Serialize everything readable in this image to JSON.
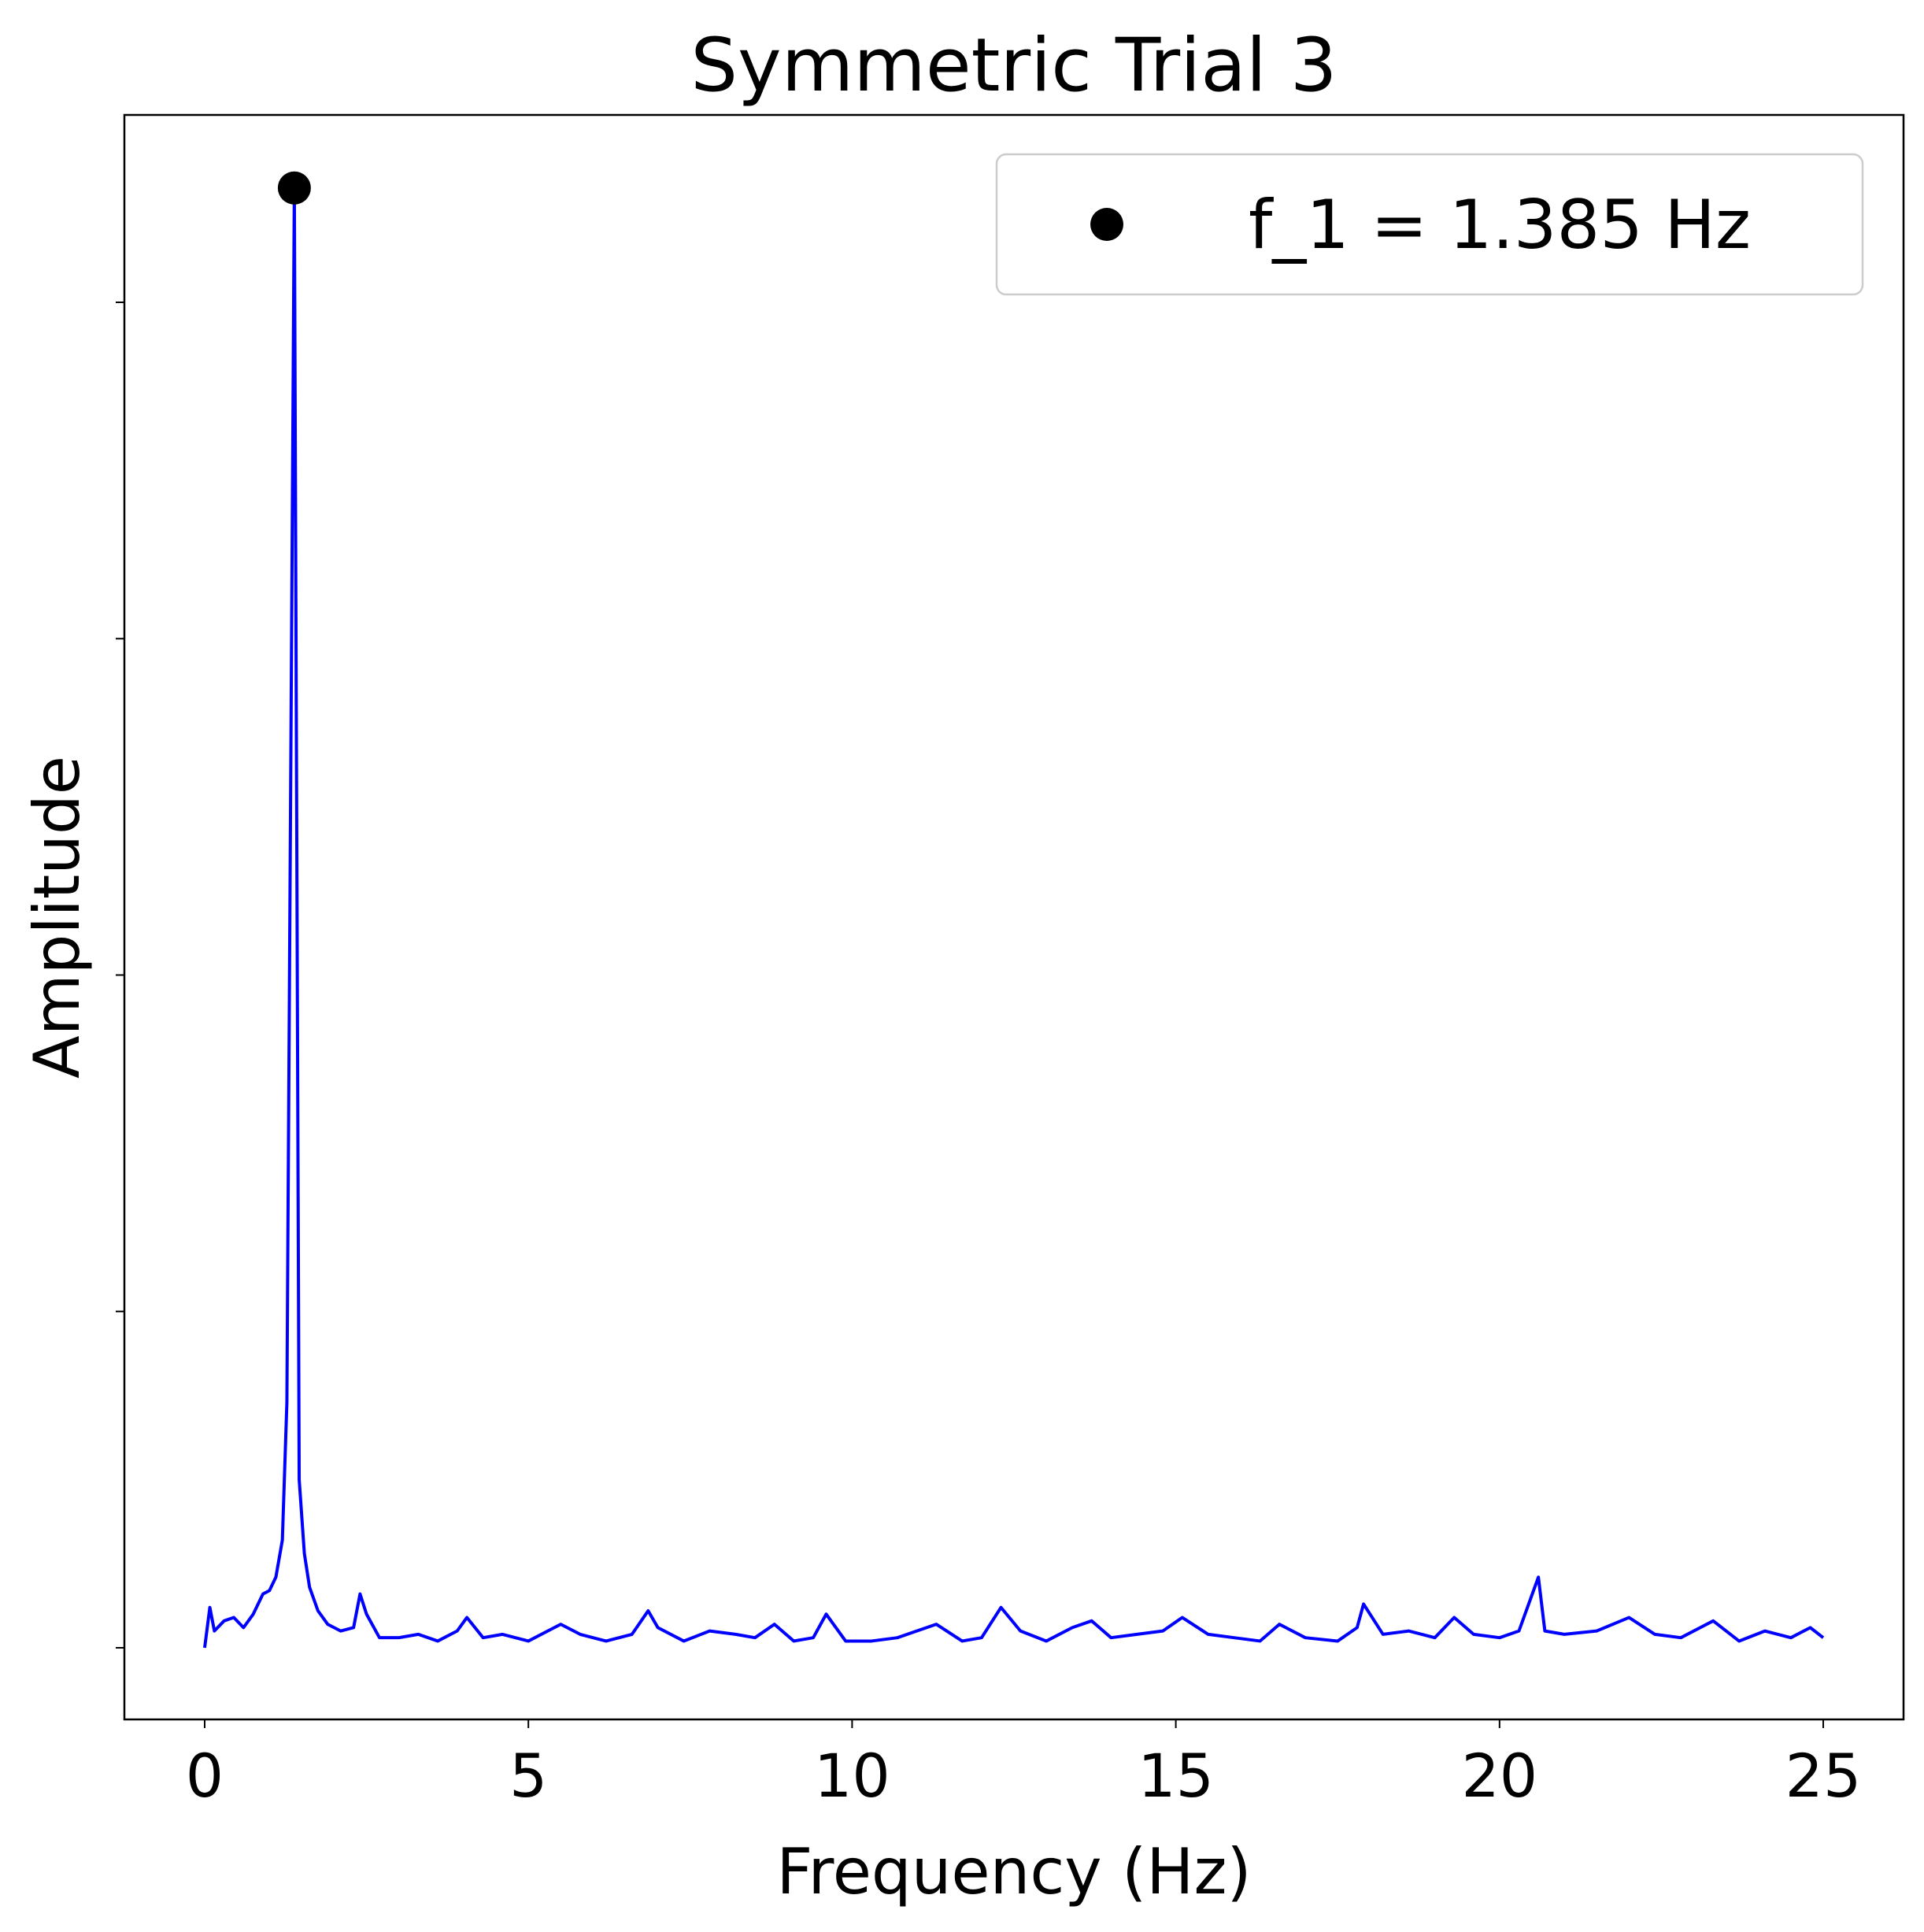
{
  "chart_data": {
    "type": "line",
    "title": "Symmetric Trial 3",
    "xlabel": "Frequency (Hz)",
    "ylabel": "Amplitude",
    "x": [
      0,
      0.08,
      0.15,
      0.3,
      0.45,
      0.6,
      0.75,
      0.9,
      1.0,
      1.1,
      1.2,
      1.27,
      1.385,
      1.46,
      1.54,
      1.62,
      1.75,
      1.9,
      2.1,
      2.3,
      2.4,
      2.5,
      2.7,
      3.0,
      3.3,
      3.6,
      3.9,
      4.05,
      4.3,
      4.6,
      5.0,
      5.3,
      5.5,
      5.8,
      6.2,
      6.6,
      6.85,
      7.0,
      7.4,
      7.8,
      8.2,
      8.5,
      8.8,
      9.1,
      9.4,
      9.6,
      9.9,
      10.3,
      10.7,
      11.0,
      11.3,
      11.7,
      12.0,
      12.3,
      12.6,
      13.0,
      13.4,
      13.7,
      14.0,
      14.4,
      14.8,
      15.1,
      15.5,
      15.9,
      16.3,
      16.6,
      17.0,
      17.5,
      17.8,
      17.9,
      18.2,
      18.6,
      19.0,
      19.3,
      19.6,
      20.0,
      20.3,
      20.6,
      20.7,
      21.0,
      21.5,
      22.0,
      22.4,
      22.8,
      23.3,
      23.7,
      24.1,
      24.5,
      24.8,
      25.0
    ],
    "values": [
      0.0,
      0.12,
      0.05,
      0.08,
      0.09,
      0.06,
      0.1,
      0.16,
      0.17,
      0.21,
      0.32,
      0.73,
      4.34,
      0.5,
      0.28,
      0.18,
      0.11,
      0.07,
      0.05,
      0.06,
      0.16,
      0.1,
      0.03,
      0.03,
      0.04,
      0.02,
      0.05,
      0.09,
      0.03,
      0.04,
      0.02,
      0.05,
      0.07,
      0.04,
      0.02,
      0.04,
      0.11,
      0.06,
      0.02,
      0.05,
      0.04,
      0.03,
      0.07,
      0.02,
      0.03,
      0.1,
      0.02,
      0.02,
      0.03,
      0.05,
      0.07,
      0.02,
      0.03,
      0.12,
      0.05,
      0.02,
      0.06,
      0.08,
      0.03,
      0.04,
      0.05,
      0.09,
      0.04,
      0.03,
      0.02,
      0.07,
      0.03,
      0.02,
      0.06,
      0.13,
      0.04,
      0.05,
      0.03,
      0.09,
      0.04,
      0.03,
      0.05,
      0.21,
      0.05,
      0.04,
      0.05,
      0.09,
      0.04,
      0.03,
      0.08,
      0.02,
      0.05,
      0.03,
      0.06,
      0.03
    ],
    "color": "#0000ff",
    "markers": [
      {
        "name": "f_1 = 1.385 Hz",
        "x": 1.385,
        "y": 4.34,
        "color": "#000000"
      }
    ],
    "legend": "upper right",
    "xlim": [
      -1.24,
      26.24
    ],
    "xticks": [
      0,
      5,
      10,
      15,
      20,
      25
    ],
    "ylim": [
      -0.213,
      4.557
    ],
    "yticks": [
      0,
      1,
      2,
      3,
      4
    ],
    "ytick_labels": false
  }
}
